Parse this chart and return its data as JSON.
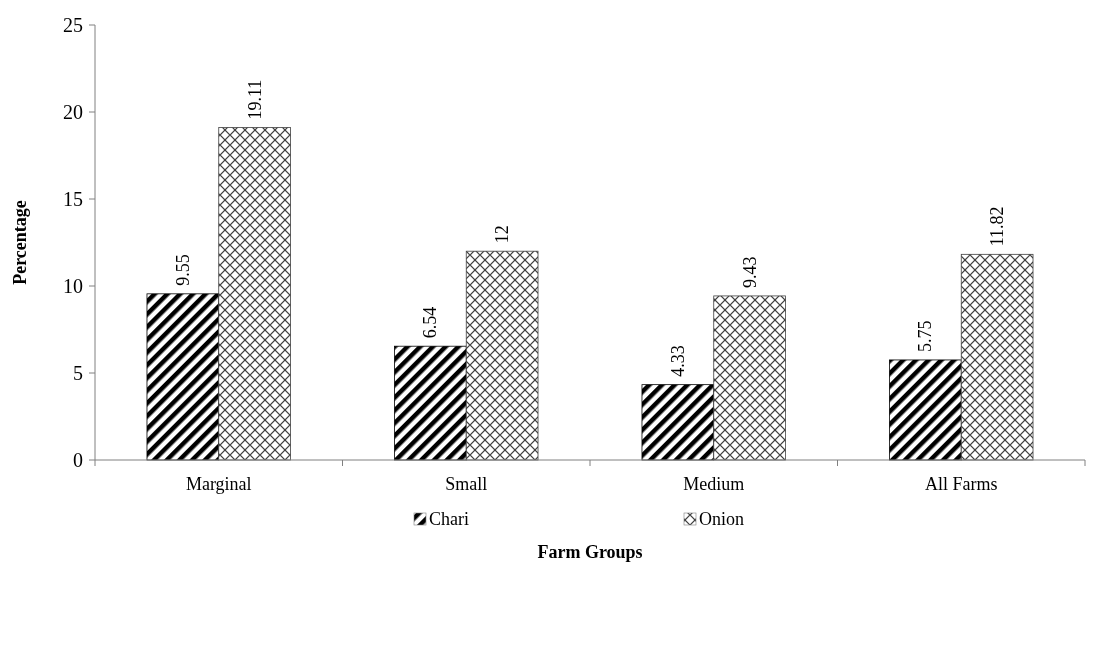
{
  "chart_data": {
    "type": "bar",
    "xlabel": "Farm Groups",
    "ylabel": "Percentage",
    "categories": [
      "Marginal",
      "Small",
      "Medium",
      "All Farms"
    ],
    "series": [
      {
        "name": "Chari",
        "color": "#000000",
        "values": [
          9.55,
          6.54,
          4.33,
          5.75
        ]
      },
      {
        "name": "Onion",
        "color": "#404040",
        "values": [
          19.11,
          12,
          9.43,
          11.82
        ]
      }
    ],
    "ylim": [
      0,
      25
    ],
    "yticks": [
      0,
      5,
      10,
      15,
      20,
      25
    ],
    "grid": false,
    "legend": "bottom",
    "data_labels": true
  }
}
